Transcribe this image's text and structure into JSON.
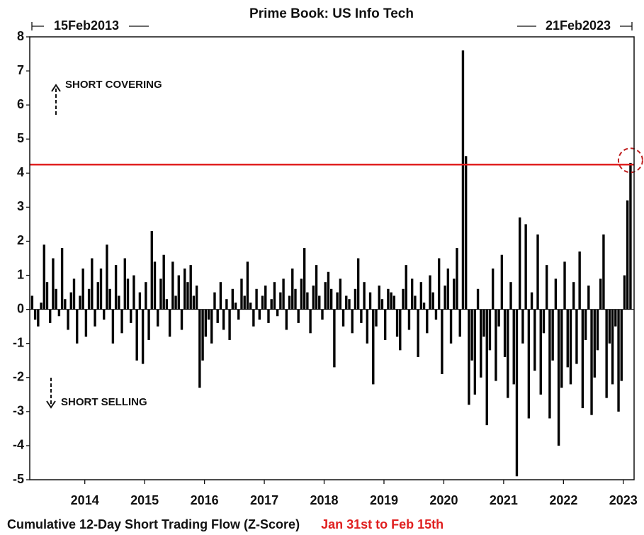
{
  "chart_data": {
    "type": "bar",
    "title": "Prime Book: US Info Tech",
    "start_label": "15Feb2013",
    "end_label": "21Feb2023",
    "annotations": [
      "SHORT COVERING",
      "SHORT SELLING"
    ],
    "xlabel": "Cumulative 12-Day Short Trading Flow (Z-Score)",
    "note": "Jan 31st to Feb 15th",
    "color": "#000000",
    "reference_line": {
      "value": 4.25,
      "color": "#e02020"
    },
    "x": [
      2013.12,
      2013.17,
      2013.22,
      2013.27,
      2013.32,
      2013.37,
      2013.42,
      2013.47,
      2013.52,
      2013.57,
      2013.62,
      2013.67,
      2013.72,
      2013.77,
      2013.82,
      2013.87,
      2013.92,
      2013.97,
      2014.02,
      2014.07,
      2014.12,
      2014.17,
      2014.22,
      2014.27,
      2014.32,
      2014.37,
      2014.42,
      2014.47,
      2014.52,
      2014.57,
      2014.62,
      2014.67,
      2014.72,
      2014.77,
      2014.82,
      2014.87,
      2014.92,
      2014.97,
      2015.02,
      2015.07,
      2015.12,
      2015.17,
      2015.22,
      2015.27,
      2015.32,
      2015.37,
      2015.42,
      2015.47,
      2015.52,
      2015.57,
      2015.62,
      2015.67,
      2015.72,
      2015.77,
      2015.82,
      2015.87,
      2015.92,
      2015.97,
      2016.02,
      2016.07,
      2016.12,
      2016.17,
      2016.22,
      2016.27,
      2016.32,
      2016.37,
      2016.42,
      2016.47,
      2016.52,
      2016.57,
      2016.62,
      2016.67,
      2016.72,
      2016.77,
      2016.82,
      2016.87,
      2016.92,
      2016.97,
      2017.02,
      2017.07,
      2017.12,
      2017.17,
      2017.22,
      2017.27,
      2017.32,
      2017.37,
      2017.42,
      2017.47,
      2017.52,
      2017.57,
      2017.62,
      2017.67,
      2017.72,
      2017.77,
      2017.82,
      2017.87,
      2017.92,
      2017.97,
      2018.02,
      2018.07,
      2018.12,
      2018.17,
      2018.22,
      2018.27,
      2018.32,
      2018.37,
      2018.42,
      2018.47,
      2018.52,
      2018.57,
      2018.62,
      2018.67,
      2018.72,
      2018.77,
      2018.82,
      2018.87,
      2018.92,
      2018.97,
      2019.02,
      2019.07,
      2019.12,
      2019.17,
      2019.22,
      2019.27,
      2019.32,
      2019.37,
      2019.42,
      2019.47,
      2019.52,
      2019.57,
      2019.62,
      2019.67,
      2019.72,
      2019.77,
      2019.82,
      2019.87,
      2019.92,
      2019.97,
      2020.02,
      2020.07,
      2020.12,
      2020.17,
      2020.22,
      2020.27,
      2020.32,
      2020.37,
      2020.42,
      2020.47,
      2020.52,
      2020.57,
      2020.62,
      2020.67,
      2020.72,
      2020.77,
      2020.82,
      2020.87,
      2020.92,
      2020.97,
      2021.02,
      2021.07,
      2021.12,
      2021.17,
      2021.22,
      2021.27,
      2021.32,
      2021.37,
      2021.42,
      2021.47,
      2021.52,
      2021.57,
      2021.62,
      2021.67,
      2021.72,
      2021.77,
      2021.82,
      2021.87,
      2021.92,
      2021.97,
      2022.02,
      2022.07,
      2022.12,
      2022.17,
      2022.22,
      2022.27,
      2022.32,
      2022.37,
      2022.42,
      2022.47,
      2022.52,
      2022.57,
      2022.62,
      2022.67,
      2022.72,
      2022.77,
      2022.82,
      2022.87,
      2022.92,
      2022.97,
      2023.02,
      2023.07,
      2023.12
    ],
    "values": [
      0.4,
      -0.3,
      -0.5,
      0.2,
      1.9,
      0.8,
      -0.4,
      1.5,
      0.6,
      -0.2,
      1.8,
      0.3,
      -0.6,
      0.5,
      0.9,
      -1.0,
      0.4,
      1.2,
      -0.8,
      0.6,
      1.5,
      -0.5,
      0.8,
      1.2,
      -0.3,
      1.9,
      0.6,
      -1.0,
      1.3,
      0.4,
      -0.7,
      1.5,
      0.9,
      -0.4,
      1.0,
      -1.5,
      0.5,
      -1.6,
      0.8,
      -0.9,
      2.3,
      1.4,
      -0.5,
      0.9,
      1.6,
      0.3,
      -0.8,
      1.4,
      0.4,
      1.0,
      -0.6,
      1.2,
      0.8,
      1.3,
      0.4,
      0.7,
      -2.3,
      -1.5,
      -0.8,
      -0.3,
      -1.0,
      0.5,
      -0.4,
      0.8,
      -0.6,
      0.3,
      -0.9,
      0.6,
      0.2,
      -0.3,
      0.9,
      0.4,
      1.4,
      0.2,
      -0.5,
      0.6,
      -0.3,
      0.4,
      0.7,
      -0.4,
      0.3,
      0.8,
      -0.2,
      0.5,
      0.9,
      -0.6,
      0.4,
      1.2,
      0.6,
      -0.4,
      0.9,
      1.8,
      0.5,
      -0.7,
      0.7,
      1.3,
      0.4,
      -0.3,
      0.8,
      1.1,
      0.6,
      -1.7,
      0.5,
      0.9,
      -0.5,
      0.4,
      0.3,
      -0.7,
      0.6,
      1.5,
      -0.4,
      0.8,
      -1.0,
      0.5,
      -2.2,
      -0.5,
      0.7,
      0.3,
      -0.9,
      0.6,
      0.5,
      0.4,
      -0.8,
      -1.2,
      0.6,
      1.3,
      -0.6,
      0.9,
      0.4,
      -1.4,
      0.8,
      0.2,
      -0.7,
      1.0,
      0.5,
      -0.3,
      1.5,
      -1.9,
      0.7,
      1.2,
      -1.0,
      0.9,
      1.8,
      -0.8,
      7.6,
      4.5,
      -2.8,
      -1.5,
      -2.5,
      0.6,
      -2.0,
      -0.8,
      -3.4,
      -1.2,
      1.2,
      -2.1,
      -0.5,
      1.6,
      -1.4,
      -2.6,
      0.8,
      -2.2,
      -4.9,
      2.7,
      -1.0,
      2.5,
      -3.2,
      0.5,
      -1.8,
      2.2,
      -2.5,
      -0.7,
      1.3,
      -3.2,
      -1.5,
      0.9,
      -4.0,
      -2.3,
      1.4,
      -1.7,
      -2.2,
      0.8,
      -1.6,
      1.7,
      -2.9,
      -0.9,
      0.7,
      -3.1,
      -2.0,
      -1.2,
      0.9,
      2.2,
      -2.6,
      -1.0,
      -2.2,
      -0.5,
      -3.0,
      -2.1,
      1.0,
      3.2,
      4.3
    ],
    "xlim": [
      2013.08,
      2023.18
    ],
    "xticks": [
      2014,
      2015,
      2016,
      2017,
      2018,
      2019,
      2020,
      2021,
      2022,
      2023
    ],
    "ylim": [
      -5,
      8
    ],
    "yticks": [
      -5,
      -4,
      -3,
      -2,
      -1,
      0,
      1,
      2,
      3,
      4,
      5,
      6,
      7,
      8
    ],
    "grid": false
  }
}
